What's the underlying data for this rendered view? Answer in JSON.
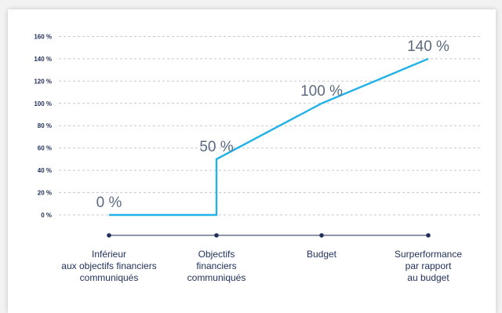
{
  "chart_data": {
    "type": "line",
    "title": "",
    "xlabel": "",
    "ylabel": "",
    "ylim": [
      0,
      160
    ],
    "yticks": [
      "0 %",
      "20 %",
      "40 %",
      "60 %",
      "80 %",
      "100 %",
      "120 %",
      "140 %",
      "160 %"
    ],
    "categories": [
      [
        "Inférieur",
        "aux objectifs financiers",
        "communiqués"
      ],
      [
        "Objectifs",
        "financiers",
        "communiqués"
      ],
      [
        "Budget"
      ],
      [
        "Surperformance",
        "par rapport",
        "au budget"
      ]
    ],
    "points": [
      {
        "x": 0,
        "y": 0
      },
      {
        "x": 1,
        "y": 0
      },
      {
        "x": 1,
        "y": 50
      },
      {
        "x": 2,
        "y": 100
      },
      {
        "x": 3,
        "y": 140
      }
    ],
    "data_labels": [
      {
        "x": 0,
        "y": 0,
        "text": "0 %"
      },
      {
        "x": 1,
        "y": 50,
        "text": "50 %"
      },
      {
        "x": 2,
        "y": 100,
        "text": "100 %"
      },
      {
        "x": 3,
        "y": 140,
        "text": "140 %"
      }
    ],
    "grid": true,
    "colors": {
      "line": "#22b2e6",
      "axis": "#1f2f5a",
      "grid": "#c4c9d4",
      "label": "#5c6a80"
    }
  }
}
